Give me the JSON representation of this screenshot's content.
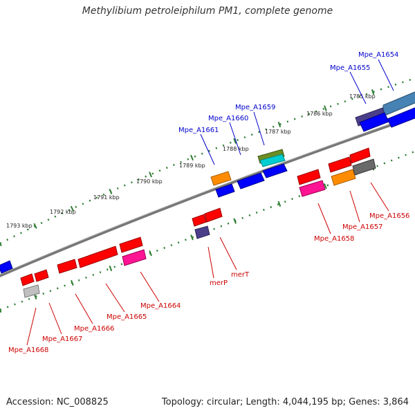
{
  "title": "Methylibium petroleiphilum PM1, complete genome",
  "footer": {
    "accession": "Accession: NC_008825",
    "stats": "Topology: circular; Length: 4,044,195 bp; Genes: 3,864"
  },
  "scale_labels": [
    "1785 kbp",
    "1786 kbp",
    "1787 kbp",
    "1788 kbp",
    "1789 kbp",
    "1790 kbp",
    "1791 kbp",
    "1792 kbp",
    "1793 kbp"
  ],
  "forward_labels": [
    "Mpe_A1654",
    "Mpe_A1655",
    "Mpe_A1659",
    "Mpe_A1660",
    "Mpe_A1661"
  ],
  "reverse_labels": [
    "Mpe_A1656",
    "Mpe_A1657",
    "Mpe_A1658",
    "merT",
    "merP",
    "Mpe_A1664",
    "Mpe_A1665",
    "Mpe_A1666",
    "Mpe_A1667",
    "Mpe_A1668"
  ],
  "colors": {
    "backbone": "#888888",
    "forward_label": "#0000cc",
    "reverse_label": "#cc0000",
    "tick": "#2e7d32",
    "gene_blue": "#0000ff",
    "gene_red": "#ff0000",
    "gene_orange": "#ff8c00",
    "gene_purple": "#4b3f8a",
    "gene_steel": "#4682b4",
    "gene_olive": "#6b8e23",
    "gene_cyan": "#00ced1",
    "gene_pink": "#ff1493",
    "gene_gray": "#696969",
    "gene_lightgray": "#c0c0c0"
  }
}
